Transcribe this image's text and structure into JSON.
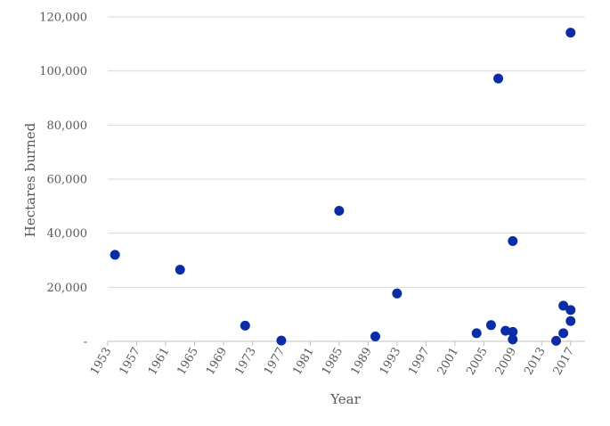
{
  "chart_data": {
    "type": "scatter",
    "title": "",
    "xlabel": "Year",
    "ylabel": "Hectares burned",
    "xlim": [
      1953,
      2019
    ],
    "ylim": [
      0,
      120000
    ],
    "x_ticks": [
      1953,
      1957,
      1961,
      1965,
      1969,
      1973,
      1977,
      1981,
      1985,
      1989,
      1993,
      1997,
      2001,
      2005,
      2009,
      2013,
      2017
    ],
    "x_tick_labels": [
      "1953",
      "1957",
      "1961",
      "1965",
      "1969",
      "1973",
      "1977",
      "1981",
      "1985",
      "1989",
      "1993",
      "1997",
      "2001",
      "2005",
      "2009",
      "2013",
      "2017"
    ],
    "y_ticks": [
      0,
      20000,
      40000,
      60000,
      80000,
      100000,
      120000
    ],
    "y_tick_labels": [
      "-",
      "20,000",
      "40,000",
      "60,000",
      "80,000",
      "100,000",
      "120,000"
    ],
    "grid": "horizontal",
    "legend": "none",
    "marker_color": "#0a2ca6",
    "series": [
      {
        "points": [
          {
            "x": 1954,
            "y": 32000
          },
          {
            "x": 1963,
            "y": 26500
          },
          {
            "x": 1972,
            "y": 5800
          },
          {
            "x": 1977,
            "y": 300
          },
          {
            "x": 1985,
            "y": 48300
          },
          {
            "x": 1990,
            "y": 1800
          },
          {
            "x": 1993,
            "y": 17700
          },
          {
            "x": 2004,
            "y": 3000
          },
          {
            "x": 2006,
            "y": 6000
          },
          {
            "x": 2007,
            "y": 97200
          },
          {
            "x": 2008,
            "y": 3900
          },
          {
            "x": 2009,
            "y": 3500
          },
          {
            "x": 2009,
            "y": 37100
          },
          {
            "x": 2009,
            "y": 700
          },
          {
            "x": 2015,
            "y": 200
          },
          {
            "x": 2016,
            "y": 13200
          },
          {
            "x": 2016,
            "y": 3000
          },
          {
            "x": 2017,
            "y": 11600
          },
          {
            "x": 2017,
            "y": 7500
          },
          {
            "x": 2017,
            "y": 114200
          }
        ]
      }
    ]
  }
}
